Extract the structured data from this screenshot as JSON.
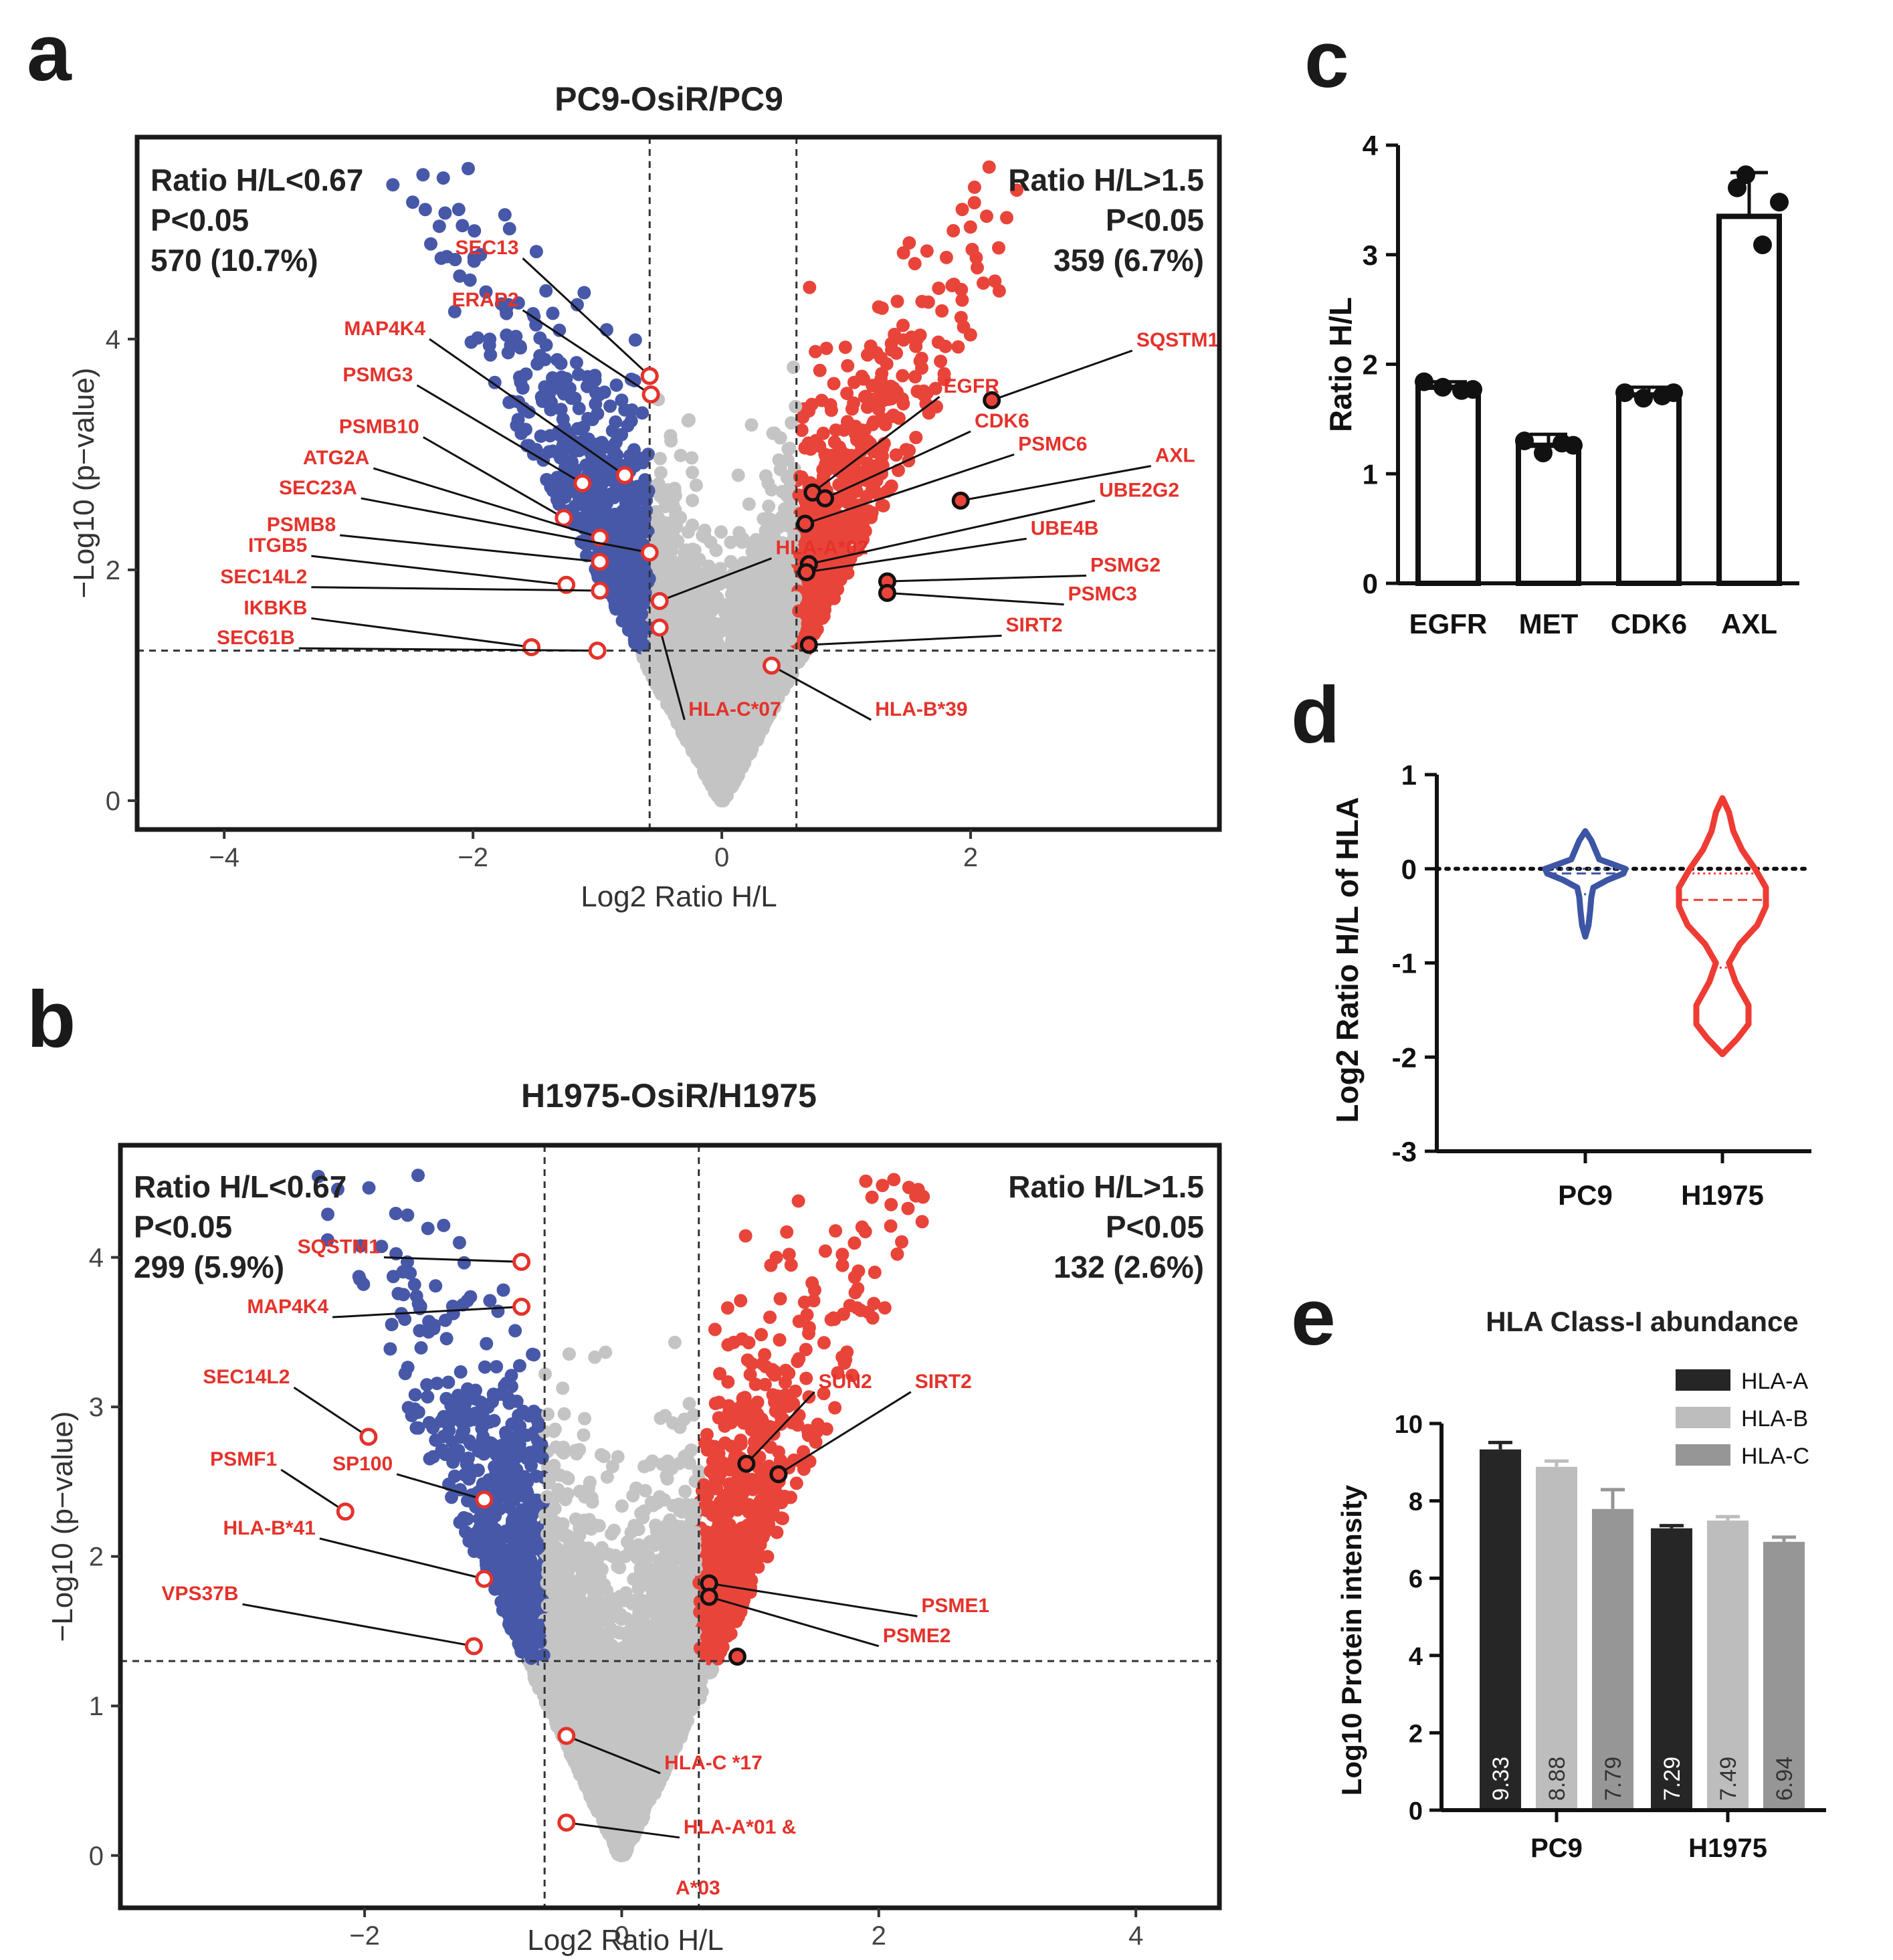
{
  "panels": {
    "a": "a",
    "b": "b",
    "c": "c",
    "d": "d",
    "e": "e"
  },
  "colors": {
    "down": "#4758a8",
    "up": "#e9443a",
    "ns": "#c4c4c4",
    "label": "#e4322b",
    "violin_pc9": "#3d55a5",
    "violin_h1975": "#ee3b33",
    "hla_a": "#262626",
    "hla_b": "#bdbdbd",
    "hla_c": "#969696"
  },
  "chart_data": [
    {
      "id": "a",
      "type": "scatter",
      "title": "PC9-OsiR/PC9",
      "xlabel": "Log2 Ratio H/L",
      "ylabel": "−Log10 (p−value)",
      "xlim": [
        -4.7,
        4.0
      ],
      "ylim": [
        -0.25,
        5.75
      ],
      "xticks": [
        -4,
        -2,
        0,
        2
      ],
      "yticks": [
        0,
        2,
        4
      ],
      "x_thresholds": [
        -0.58,
        0.6
      ],
      "y_threshold": 1.3,
      "left_text": [
        "Ratio H/L<0.67",
        "P<0.05",
        "570 (10.7%)"
      ],
      "right_text": [
        "Ratio H/L>1.5",
        "P<0.05",
        "359 (6.7%)"
      ],
      "highlighted": [
        {
          "name": "SEC13",
          "x": -0.58,
          "y": 3.68,
          "edge": "red",
          "lx": -1.6,
          "ly": 4.7
        },
        {
          "name": "ERAP2",
          "x": -0.57,
          "y": 3.52,
          "edge": "red",
          "lx": -1.6,
          "ly": 4.25
        },
        {
          "name": "MAP4K4",
          "x": -0.78,
          "y": 2.82,
          "edge": "red",
          "lx": -2.35,
          "ly": 4.0
        },
        {
          "name": "PSMG3",
          "x": -1.12,
          "y": 2.75,
          "edge": "red",
          "lx": -2.45,
          "ly": 3.6
        },
        {
          "name": "PSMB10",
          "x": -1.27,
          "y": 2.45,
          "edge": "red",
          "lx": -2.4,
          "ly": 3.15
        },
        {
          "name": "ATG2A",
          "x": -0.98,
          "y": 2.28,
          "edge": "red",
          "lx": -2.8,
          "ly": 2.88
        },
        {
          "name": "SEC23A",
          "x": -0.58,
          "y": 2.15,
          "edge": "red",
          "lx": -2.9,
          "ly": 2.62
        },
        {
          "name": "PSMB8",
          "x": -0.98,
          "y": 2.07,
          "edge": "red",
          "lx": -3.07,
          "ly": 2.3
        },
        {
          "name": "ITGB5",
          "x": -1.25,
          "y": 1.87,
          "edge": "red",
          "lx": -3.3,
          "ly": 2.12
        },
        {
          "name": "SEC14L2",
          "x": -0.98,
          "y": 1.82,
          "edge": "red",
          "lx": -3.3,
          "ly": 1.85
        },
        {
          "name": "IKBKB",
          "x": -1.53,
          "y": 1.33,
          "edge": "red",
          "lx": -3.3,
          "ly": 1.58
        },
        {
          "name": "SEC61B",
          "x": -1.0,
          "y": 1.3,
          "edge": "red",
          "lx": -3.4,
          "ly": 1.32
        },
        {
          "name": "HLA-A*02",
          "x": -0.5,
          "y": 1.73,
          "edge": "red",
          "lx": 0.4,
          "ly": 2.1
        },
        {
          "name": "HLA-C*07",
          "x": -0.5,
          "y": 1.5,
          "edge": "red",
          "lx": -0.3,
          "ly": 0.7
        },
        {
          "name": "HLA-B*39",
          "x": 0.4,
          "y": 1.17,
          "edge": "red",
          "lx": 1.2,
          "ly": 0.7
        },
        {
          "name": "SQSTM1",
          "x": 2.17,
          "y": 3.47,
          "edge": "black",
          "lx": 3.3,
          "ly": 3.9
        },
        {
          "name": "EGFR",
          "x": 0.73,
          "y": 2.67,
          "edge": "black",
          "lx": 1.75,
          "ly": 3.5
        },
        {
          "name": "CDK6",
          "x": 0.83,
          "y": 2.62,
          "edge": "black",
          "lx": 2.0,
          "ly": 3.2
        },
        {
          "name": "PSMC6",
          "x": 0.67,
          "y": 2.4,
          "edge": "black",
          "lx": 2.35,
          "ly": 3.0
        },
        {
          "name": "AXL",
          "x": 1.92,
          "y": 2.6,
          "edge": "black",
          "lx": 3.45,
          "ly": 2.9
        },
        {
          "name": "UBE2G2",
          "x": 0.7,
          "y": 2.05,
          "edge": "black",
          "lx": 3.0,
          "ly": 2.6
        },
        {
          "name": "UBE4B",
          "x": 0.68,
          "y": 1.98,
          "edge": "black",
          "lx": 2.45,
          "ly": 2.27
        },
        {
          "name": "PSMG2",
          "x": 1.33,
          "y": 1.9,
          "edge": "black",
          "lx": 2.93,
          "ly": 1.95
        },
        {
          "name": "PSMC3",
          "x": 1.33,
          "y": 1.8,
          "edge": "black",
          "lx": 2.75,
          "ly": 1.7
        },
        {
          "name": "SIRT2",
          "x": 0.7,
          "y": 1.35,
          "edge": "black",
          "lx": 2.25,
          "ly": 1.43
        }
      ]
    },
    {
      "id": "b",
      "type": "scatter",
      "title": "H1975-OsiR/H1975",
      "xlabel": "Log2 Ratio H/L",
      "ylabel": "−Log10 (p−value)",
      "xlim": [
        -3.9,
        4.65
      ],
      "ylim": [
        -0.35,
        4.75
      ],
      "xticks": [
        -2,
        0,
        2,
        4
      ],
      "yticks": [
        0,
        1,
        2,
        3,
        4
      ],
      "x_thresholds": [
        -0.6,
        0.6
      ],
      "y_threshold": 1.3,
      "left_text": [
        "Ratio H/L<0.67",
        "P<0.05",
        "299 (5.9%)"
      ],
      "right_text": [
        "Ratio H/L>1.5",
        "P<0.05",
        "132 (2.6%)"
      ],
      "highlighted": [
        {
          "name": "SQSTM1",
          "x": -0.78,
          "y": 3.97,
          "edge": "red",
          "lx": -1.85,
          "ly": 4.0
        },
        {
          "name": "MAP4K4",
          "x": -0.78,
          "y": 3.67,
          "edge": "red",
          "lx": -2.25,
          "ly": 3.6
        },
        {
          "name": "SEC14L2",
          "x": -1.97,
          "y": 2.8,
          "edge": "red",
          "lx": -2.55,
          "ly": 3.13
        },
        {
          "name": "PSMF1",
          "x": -2.15,
          "y": 2.3,
          "edge": "red",
          "lx": -2.65,
          "ly": 2.58
        },
        {
          "name": "SP100",
          "x": -1.07,
          "y": 2.38,
          "edge": "red",
          "lx": -1.75,
          "ly": 2.55
        },
        {
          "name": "HLA-B*41",
          "x": -1.07,
          "y": 1.85,
          "edge": "red",
          "lx": -2.35,
          "ly": 2.12
        },
        {
          "name": "VPS37B",
          "x": -1.15,
          "y": 1.4,
          "edge": "red",
          "lx": -2.95,
          "ly": 1.68
        },
        {
          "name": "HLA-C *17",
          "x": -0.43,
          "y": 0.8,
          "edge": "red",
          "lx": 0.3,
          "ly": 0.55
        },
        {
          "name": "HLA-A*01 &",
          "x": -0.43,
          "y": 0.22,
          "edge": "red",
          "lx": 0.45,
          "ly": 0.12
        },
        {
          "name": "SUN2",
          "x": 0.97,
          "y": 2.62,
          "edge": "black",
          "lx": 1.5,
          "ly": 3.1
        },
        {
          "name": "SIRT2",
          "x": 1.22,
          "y": 2.55,
          "edge": "black",
          "lx": 2.25,
          "ly": 3.1
        },
        {
          "name": "PSME1",
          "x": 0.68,
          "y": 1.82,
          "edge": "black",
          "lx": 2.3,
          "ly": 1.6
        },
        {
          "name": "PSME2",
          "x": 0.68,
          "y": 1.73,
          "edge": "black",
          "lx": 2.0,
          "ly": 1.4
        },
        {
          "name": "",
          "x": 0.9,
          "y": 1.33,
          "edge": "black",
          "lx": 0.9,
          "ly": 1.33
        }
      ],
      "extra_text": "A*03"
    },
    {
      "id": "c",
      "type": "bar",
      "ylabel": "Ratio H/L",
      "ylim": [
        0,
        4
      ],
      "yticks": [
        0,
        1,
        2,
        3,
        4
      ],
      "categories": [
        "EGFR",
        "MET",
        "CDK6",
        "AXL"
      ],
      "values": [
        1.79,
        1.26,
        1.72,
        3.35
      ],
      "errors": [
        0.05,
        0.1,
        0.07,
        0.4
      ],
      "points": [
        [
          1.84,
          1.79,
          1.76,
          1.77
        ],
        [
          1.3,
          1.19,
          1.28,
          1.26
        ],
        [
          1.74,
          1.69,
          1.71,
          1.74
        ],
        [
          3.61,
          3.48,
          3.09,
          3.73
        ]
      ]
    },
    {
      "id": "d",
      "type": "violin",
      "ylabel": "Log2 Ratio H/L of HLA",
      "ylim": [
        -3,
        1
      ],
      "yticks": [
        1,
        0,
        -1,
        -2,
        -3
      ],
      "ytick_labels": [
        "1",
        "0",
        "-1",
        "-2",
        "-3"
      ],
      "categories": [
        "PC9",
        "H1975"
      ],
      "violins": [
        {
          "name": "PC9",
          "ymin": -0.72,
          "ymax": 0.4,
          "median": -0.05,
          "q1": -0.27,
          "q3": 0.0,
          "width_profile": [
            [
              0.4,
              0
            ],
            [
              0.3,
              0.15
            ],
            [
              0.2,
              0.25
            ],
            [
              0.1,
              0.35
            ],
            [
              0.0,
              1.0
            ],
            [
              -0.05,
              0.95
            ],
            [
              -0.12,
              0.55
            ],
            [
              -0.2,
              0.2
            ],
            [
              -0.3,
              0.15
            ],
            [
              -0.45,
              0.12
            ],
            [
              -0.6,
              0.08
            ],
            [
              -0.72,
              0
            ]
          ]
        },
        {
          "name": "H1975",
          "ymin": -1.97,
          "ymax": 0.75,
          "median": -0.33,
          "q1": -1.05,
          "q3": -0.05,
          "width_profile": [
            [
              0.75,
              0
            ],
            [
              0.6,
              0.15
            ],
            [
              0.4,
              0.25
            ],
            [
              0.2,
              0.45
            ],
            [
              0.0,
              0.75
            ],
            [
              -0.2,
              1.0
            ],
            [
              -0.4,
              1.0
            ],
            [
              -0.6,
              0.8
            ],
            [
              -0.8,
              0.4
            ],
            [
              -1.0,
              0.15
            ],
            [
              -1.2,
              0.3
            ],
            [
              -1.45,
              0.6
            ],
            [
              -1.65,
              0.6
            ],
            [
              -1.8,
              0.35
            ],
            [
              -1.97,
              0
            ]
          ]
        }
      ]
    },
    {
      "id": "e",
      "type": "bar",
      "title": "HLA Class-I abundance",
      "ylabel": "Log10 Protein intensity",
      "ylim": [
        0,
        10
      ],
      "yticks": [
        0,
        2,
        4,
        6,
        8,
        10
      ],
      "categories": [
        "PC9",
        "H1975"
      ],
      "series": [
        {
          "name": "HLA-A",
          "values": [
            9.33,
            7.29
          ],
          "errors": [
            0.18,
            0.07
          ]
        },
        {
          "name": "HLA-B",
          "values": [
            8.88,
            7.49
          ],
          "errors": [
            0.15,
            0.1
          ]
        },
        {
          "name": "HLA-C",
          "values": [
            7.79,
            6.94
          ],
          "errors": [
            0.5,
            0.12
          ]
        }
      ],
      "value_labels": [
        [
          "9.33",
          "8.88",
          "7.79"
        ],
        [
          "7.29",
          "7.49",
          "6.94"
        ]
      ]
    }
  ]
}
